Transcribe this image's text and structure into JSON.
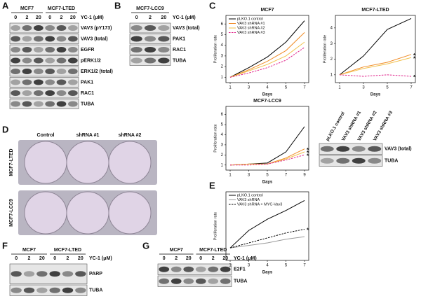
{
  "panel_labels": [
    "A",
    "B",
    "C",
    "D",
    "E",
    "F",
    "G"
  ],
  "blots": [
    {
      "groups": [
        "MCF7",
        "MCF7-LTED"
      ],
      "lanes": [
        "0",
        "2",
        "20",
        "0",
        "2",
        "20"
      ],
      "treatment": "YC-1 (μM)",
      "rows": [
        "VAV3 (pY173)",
        "VAV3 (total)",
        "EGFR",
        "pERK1/2",
        "ERK1/2 (total)",
        "PAK1",
        "RAC1",
        "TUBA"
      ]
    },
    {
      "groups": [
        "MCF7-LCC9"
      ],
      "lanes": [
        "0",
        "2",
        "20"
      ],
      "treatment": "YC-1 (μM)",
      "rows": [
        "VAV3 (total)",
        "PAK1",
        "RAC1",
        "TUBA"
      ]
    },
    {
      "lanes": [
        "pLKO.1 control",
        "VAV3 shRNA #1",
        "VAV3 shRNA #2",
        "VAV3 shRNA #3"
      ],
      "rows": [
        "VAV3 (total)",
        "TUBA"
      ]
    },
    {
      "groups": [
        "MCF7",
        "MCF7-LTED"
      ],
      "lanes": [
        "0",
        "2",
        "20",
        "0",
        "2",
        "20"
      ],
      "treatment": "YC-1 (μM)",
      "rows": [
        "PARP",
        "TUBA"
      ]
    },
    {
      "groups": [
        "MCF7",
        "MCF7-LTED"
      ],
      "lanes": [
        "0",
        "2",
        "20",
        "0",
        "2",
        "20"
      ],
      "treatment": "YC-1 (μM)",
      "rows": [
        "E2F1",
        "TUBA"
      ]
    }
  ],
  "colonies": {
    "columns": [
      "Control",
      "shRNA #1",
      "shRNA #2"
    ],
    "rows": [
      "MCF7-LTED",
      "MCF7-LCC9"
    ]
  },
  "chart_data": [
    {
      "type": "line",
      "title": "MCF7",
      "xlabel": "Days",
      "ylabel": "Proliferation rate",
      "categories": [
        "1",
        "3",
        "4",
        "5",
        "7"
      ],
      "ylim": [
        0.5,
        6.8
      ],
      "yticks": [
        1,
        2,
        3,
        4,
        5,
        6
      ],
      "legend": "upper left",
      "series": [
        {
          "name": "pLKO.1 control",
          "color": "#000000",
          "dash": false,
          "values": [
            1,
            1.9,
            2.9,
            4.3,
            6.3
          ]
        },
        {
          "name": "VAV3 shRNA #1",
          "color": "#f08a24",
          "dash": false,
          "values": [
            1,
            1.7,
            2.5,
            3.5,
            5.2
          ]
        },
        {
          "name": "VAV3 shRNA #2",
          "color": "#f2c14e",
          "dash": false,
          "values": [
            1,
            1.6,
            2.2,
            3.0,
            4.3
          ]
        },
        {
          "name": "VAV3 shRNA #3",
          "color": "#e0218a",
          "dash": true,
          "values": [
            1,
            1.4,
            1.9,
            2.6,
            3.8
          ]
        }
      ]
    },
    {
      "type": "line",
      "title": "MCF7-LTED",
      "xlabel": "Days",
      "ylabel": "Proliferation rate",
      "categories": [
        "1",
        "3",
        "5",
        "7"
      ],
      "ylim": [
        0.5,
        4.8
      ],
      "yticks": [
        1,
        2,
        3,
        4
      ],
      "annotations": [
        "*",
        "*",
        "*"
      ],
      "series": [
        {
          "color": "#000000",
          "dash": false,
          "values": [
            1,
            2.2,
            3.9,
            4.6
          ]
        },
        {
          "color": "#f08a24",
          "dash": false,
          "values": [
            1,
            1.5,
            1.8,
            2.3
          ]
        },
        {
          "color": "#f2c14e",
          "dash": false,
          "values": [
            1,
            1.4,
            1.7,
            2.1
          ]
        },
        {
          "color": "#e0218a",
          "dash": true,
          "values": [
            1,
            0.9,
            1,
            0.9
          ]
        }
      ]
    },
    {
      "type": "line",
      "title": "MCF7-LCC9",
      "xlabel": "Days",
      "ylabel": "Proliferation rate",
      "categories": [
        "1",
        "3",
        "5",
        "7",
        "9"
      ],
      "ylim": [
        0.5,
        6.8
      ],
      "yticks": [
        1,
        2,
        3,
        4,
        5,
        6
      ],
      "annotations": [
        "*",
        "*",
        "*"
      ],
      "series": [
        {
          "color": "#000000",
          "dash": false,
          "values": [
            1,
            1.1,
            1.2,
            2.3,
            4.8
          ]
        },
        {
          "color": "#f08a24",
          "dash": false,
          "values": [
            1,
            1.1,
            1.1,
            1.7,
            2.6
          ]
        },
        {
          "color": "#f2c14e",
          "dash": false,
          "values": [
            1,
            1.1,
            1.1,
            1.6,
            2.3
          ]
        },
        {
          "color": "#e0218a",
          "dash": true,
          "values": [
            1,
            1.0,
            1.1,
            1.5,
            2.0
          ]
        }
      ]
    },
    {
      "type": "line",
      "xlabel": "Days",
      "ylabel": "Proliferation rate",
      "categories": [
        "1",
        "3",
        "4",
        "5",
        "7"
      ],
      "ylim": [
        0,
        5.5
      ],
      "legend": "upper left",
      "annotations": [
        "*"
      ],
      "series": [
        {
          "name": "pLKO.1 control",
          "color": "#000000",
          "dash": false,
          "values": [
            1,
            2.4,
            3.3,
            4.0,
            4.8
          ]
        },
        {
          "name": "VAV3 shRNA",
          "color": "#9a9a9a",
          "dash": false,
          "values": [
            1,
            1.2,
            1.4,
            1.7,
            1.9
          ]
        },
        {
          "name": "VAV3 shRNA + MYC-Vav3",
          "color": "#000000",
          "dash": true,
          "values": [
            1,
            1.4,
            1.8,
            2.2,
            2.5
          ]
        }
      ]
    }
  ]
}
